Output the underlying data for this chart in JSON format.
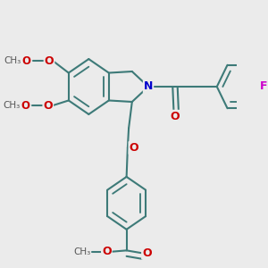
{
  "background_color": "#ebebeb",
  "bond_color": "#3d7a78",
  "bond_width": 1.5,
  "atom_colors": {
    "O": "#cc0000",
    "N": "#0000cc",
    "F": "#cc00cc"
  },
  "xlim": [
    0,
    10
  ],
  "ylim": [
    0,
    10
  ]
}
